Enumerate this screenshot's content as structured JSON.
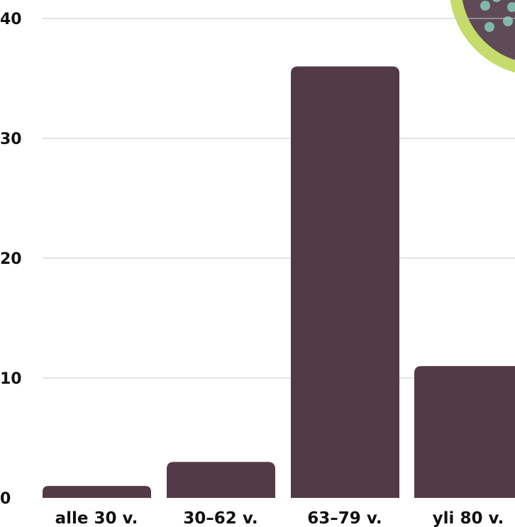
{
  "chart_data": {
    "type": "bar",
    "categories": [
      "alle 30 v.",
      "30–62 v.",
      "63–79 v.",
      "yli 80 v."
    ],
    "values": [
      1,
      3,
      36,
      11
    ],
    "ylim": [
      0,
      40
    ],
    "yticks": [
      0,
      10,
      20,
      30,
      40
    ],
    "ytick_labels": [
      "0",
      "10",
      "20",
      "30",
      "40"
    ],
    "grid": true,
    "title": "",
    "xlabel": "",
    "ylabel": "",
    "colors": {
      "bar": "#523a47",
      "grid": "#c8c8c8",
      "text": "#111111",
      "badge_ring": "#c5dc6a",
      "badge_inner": "#5f4a57",
      "badge_dots": "#7fb9ad"
    }
  }
}
